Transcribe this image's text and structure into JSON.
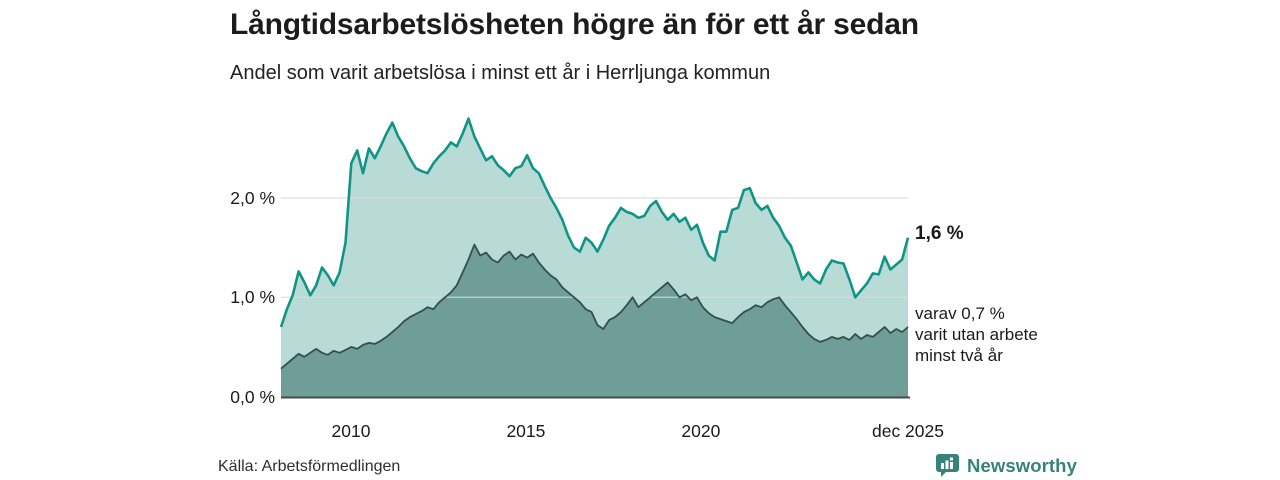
{
  "header": {
    "title": "Långtidsarbetslösheten högre än för ett år sedan",
    "subtitle": "Andel som varit arbetslösa i minst ett år i Herrljunga kommun"
  },
  "annotations": {
    "latest_total_label": "1,6 %",
    "breakdown_label": "varav 0,7 %\nvarit utan arbete\nminst två år"
  },
  "footer": {
    "source": "Källa: Arbetsförmedlingen",
    "brand": "Newsworthy"
  },
  "colors": {
    "line_total": "#119488",
    "fill_total": "#b9dbd5",
    "line_two_years": "#33504a",
    "fill_two_years": "#6f9d97",
    "gridline": "#d9d9d9",
    "axis_line": "#4a4a4a",
    "brand_teal": "#36837a",
    "text": "#1a1a1a"
  },
  "chart_data": {
    "type": "area",
    "title": "Långtidsarbetslösheten högre än för ett år sedan",
    "subtitle": "Andel som varit arbetslösa i minst ett år i Herrljunga kommun",
    "unit": "%",
    "x_range": [
      2008.0,
      2025.92
    ],
    "ylim": [
      0,
      2.9
    ],
    "grid": "horizontal",
    "legend_position": "right-annotations",
    "y_ticks": [
      {
        "value": 0,
        "label": "0,0 %"
      },
      {
        "value": 1,
        "label": "1,0 %"
      },
      {
        "value": 2,
        "label": "2,0 %"
      }
    ],
    "x_ticks": [
      {
        "value": 2010,
        "label": "2010"
      },
      {
        "value": 2015,
        "label": "2015"
      },
      {
        "value": 2020,
        "label": "2020"
      },
      {
        "value": 2025.92,
        "label": "dec 2025"
      }
    ],
    "latest": {
      "total_pct": 1.6,
      "two_years_pct": 0.7,
      "period": "dec 2025"
    },
    "series": [
      {
        "name": "Andel arbetslösa minst ett år",
        "values": [
          0.7,
          0.88,
          1.02,
          1.26,
          1.15,
          1.02,
          1.12,
          1.3,
          1.22,
          1.12,
          1.25,
          1.55,
          2.35,
          2.48,
          2.25,
          2.5,
          2.4,
          2.52,
          2.65,
          2.76,
          2.62,
          2.52,
          2.4,
          2.3,
          2.27,
          2.25,
          2.35,
          2.42,
          2.48,
          2.56,
          2.52,
          2.65,
          2.8,
          2.62,
          2.5,
          2.38,
          2.42,
          2.33,
          2.28,
          2.22,
          2.3,
          2.32,
          2.43,
          2.3,
          2.25,
          2.12,
          2.0,
          1.9,
          1.78,
          1.62,
          1.5,
          1.46,
          1.6,
          1.55,
          1.46,
          1.58,
          1.72,
          1.8,
          1.9,
          1.86,
          1.84,
          1.8,
          1.82,
          1.92,
          1.97,
          1.86,
          1.78,
          1.84,
          1.76,
          1.8,
          1.68,
          1.73,
          1.55,
          1.42,
          1.37,
          1.66,
          1.66,
          1.88,
          1.9,
          2.08,
          2.1,
          1.95,
          1.88,
          1.92,
          1.8,
          1.72,
          1.6,
          1.52,
          1.35,
          1.18,
          1.25,
          1.18,
          1.14,
          1.28,
          1.37,
          1.35,
          1.34,
          1.18,
          1.0,
          1.07,
          1.14,
          1.24,
          1.23,
          1.41,
          1.28,
          1.33,
          1.38,
          1.6
        ]
      },
      {
        "name": "varav utan arbete minst två år",
        "values": [
          0.28,
          0.33,
          0.38,
          0.43,
          0.4,
          0.44,
          0.48,
          0.44,
          0.42,
          0.46,
          0.44,
          0.47,
          0.5,
          0.48,
          0.52,
          0.54,
          0.53,
          0.56,
          0.6,
          0.65,
          0.7,
          0.76,
          0.8,
          0.83,
          0.86,
          0.9,
          0.88,
          0.95,
          1.0,
          1.05,
          1.12,
          1.25,
          1.38,
          1.53,
          1.42,
          1.45,
          1.38,
          1.35,
          1.42,
          1.46,
          1.38,
          1.43,
          1.4,
          1.44,
          1.35,
          1.28,
          1.22,
          1.18,
          1.1,
          1.05,
          1.0,
          0.95,
          0.88,
          0.85,
          0.72,
          0.68,
          0.77,
          0.8,
          0.85,
          0.92,
          1.0,
          0.9,
          0.95,
          1.0,
          1.05,
          1.1,
          1.15,
          1.08,
          1.0,
          1.03,
          0.97,
          1.0,
          0.9,
          0.84,
          0.8,
          0.78,
          0.76,
          0.74,
          0.8,
          0.85,
          0.88,
          0.92,
          0.9,
          0.95,
          0.98,
          1.0,
          0.92,
          0.85,
          0.78,
          0.7,
          0.63,
          0.58,
          0.55,
          0.57,
          0.6,
          0.58,
          0.6,
          0.57,
          0.63,
          0.58,
          0.62,
          0.6,
          0.65,
          0.7,
          0.64,
          0.68,
          0.65,
          0.7
        ]
      }
    ]
  }
}
